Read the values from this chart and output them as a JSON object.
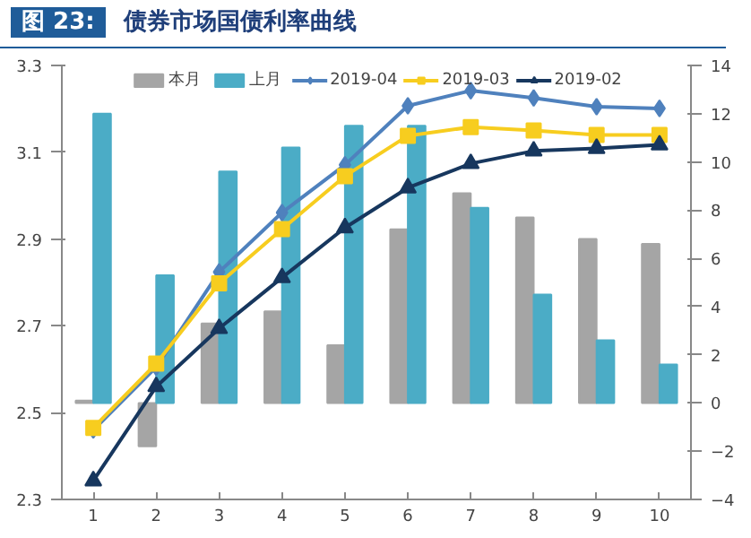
{
  "chart_data": {
    "type": "bar",
    "title": "图 23:",
    "subtitle": "债券市场国债利率曲线",
    "categories": [
      "1",
      "2",
      "3",
      "4",
      "5",
      "6",
      "7",
      "8",
      "9",
      "10"
    ],
    "series": [
      {
        "name": "本月",
        "axis": "y2",
        "color": "#a5a5a5",
        "values": [
          0.1,
          -1.8,
          3.3,
          3.8,
          2.4,
          7.2,
          8.7,
          7.7,
          6.8,
          6.6
        ]
      },
      {
        "name": "上月",
        "axis": "y2",
        "color": "#4bacc6",
        "values": [
          12.0,
          5.3,
          9.6,
          10.6,
          11.5,
          11.5,
          8.1,
          4.5,
          2.6,
          1.6
        ]
      },
      {
        "name": "2019-04",
        "type": "line",
        "axis": "y",
        "marker": "diamond",
        "color": "#4f81bd",
        "values": [
          2.46,
          2.605,
          2.824,
          2.961,
          3.071,
          3.207,
          3.242,
          3.225,
          3.205,
          3.201
        ]
      },
      {
        "name": "2019-03",
        "type": "line",
        "axis": "y",
        "marker": "square",
        "color": "#f7cd1f",
        "values": [
          2.465,
          2.613,
          2.798,
          2.923,
          3.045,
          3.138,
          3.158,
          3.15,
          3.14,
          3.14
        ]
      },
      {
        "name": "2019-02",
        "type": "line",
        "axis": "y",
        "marker": "triangle",
        "color": "#17375e",
        "values": [
          2.343,
          2.56,
          2.694,
          2.811,
          2.926,
          3.018,
          3.074,
          3.103,
          3.109,
          3.117
        ]
      }
    ],
    "ylim": [
      2.3,
      3.3
    ],
    "yticks": [
      2.3,
      2.5,
      2.7,
      2.9,
      3.1,
      3.3
    ],
    "y2lim": [
      -4,
      14
    ],
    "y2ticks": [
      -4,
      -2,
      0,
      2,
      4,
      6,
      8,
      10,
      12,
      14
    ],
    "grid": false,
    "legend": "top"
  }
}
